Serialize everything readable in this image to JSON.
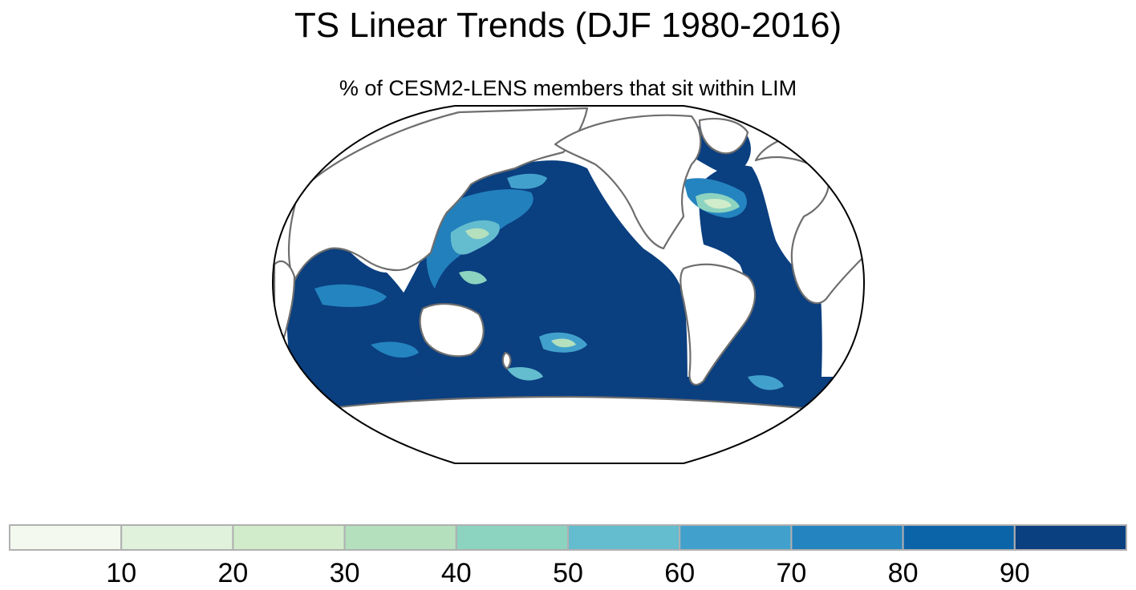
{
  "title": "TS Linear Trends (DJF 1980-2016)",
  "subtitle": "% of CESM2-LENS members that sit within LIM",
  "map": {
    "projection": "robinson",
    "center_longitude": 180,
    "land_color": "#ffffff",
    "coast_color": "#6e6e6e",
    "ocean_fill_dominant_value": 95,
    "masked_region": "Antarctica and high-latitude Southern Ocean (white)"
  },
  "colorbar": {
    "tick_labels": [
      "10",
      "20",
      "30",
      "40",
      "50",
      "60",
      "70",
      "80",
      "90"
    ],
    "levels": [
      10,
      20,
      30,
      40,
      50,
      60,
      70,
      80,
      90
    ],
    "colors": [
      "#f4f9ef",
      "#e1f2dc",
      "#d0ecca",
      "#b4e0bd",
      "#8cd3c0",
      "#64bccf",
      "#42a1cc",
      "#2484bf",
      "#0c64a8",
      "#0a3f80"
    ]
  }
}
